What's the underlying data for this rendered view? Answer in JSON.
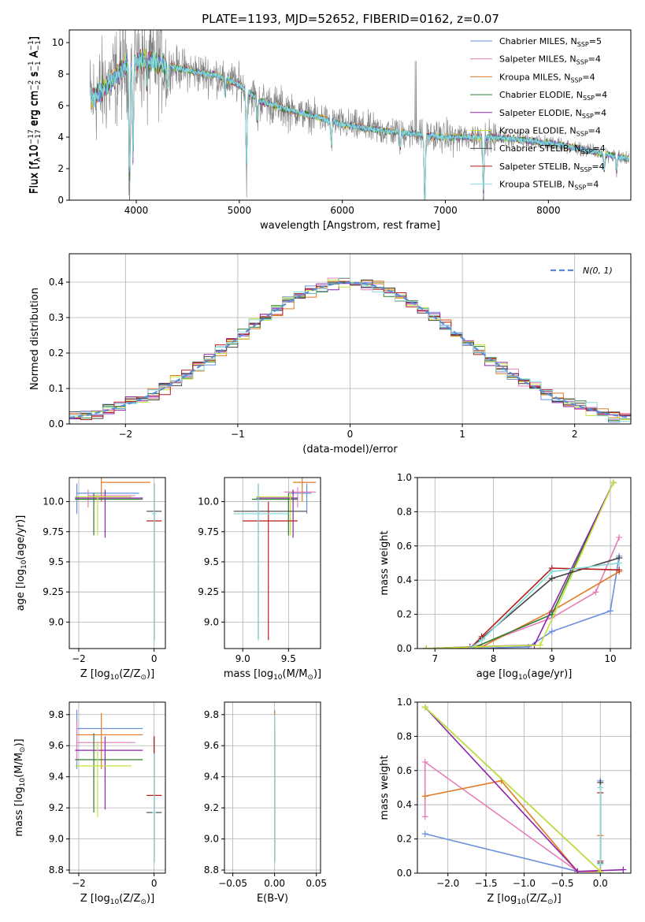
{
  "figure": {
    "title": "PLATE=1193, MJD=52652, FIBERID=0162, z=0.07"
  },
  "colors": {
    "Chabrier MILES": "#6a8fde",
    "Salpeter MILES": "#e67fb8",
    "Kroupa MILES": "#e07a25",
    "Chabrier ELODIE": "#2e7d32",
    "Salpeter ELODIE": "#8e24aa",
    "Kroupa ELODIE": "#c6e33a",
    "Chabrier STELIB": "#444444",
    "Salpeter STELIB": "#b71c1c",
    "Kroupa STELIB": "#86dcdc",
    "data": "#808080",
    "gaussian": "#5b8bd8"
  },
  "chart_data": [
    {
      "type": "line",
      "title": "PLATE=1193, MJD=52652, FIBERID=0162, z=0.07",
      "xlabel": "wavelength [Angstrom, rest frame]",
      "ylabel_parts": [
        "Flux [f",
        "λ",
        "10",
        "−17",
        " erg cm",
        "−2",
        " s",
        "−1",
        " A",
        "−1",
        "]"
      ],
      "xlim": [
        3350,
        8800
      ],
      "ylim": [
        0,
        10.8
      ],
      "xticks": [
        4000,
        5000,
        6000,
        7000,
        8000
      ],
      "yticks": [
        0,
        2,
        4,
        6,
        8,
        10
      ],
      "grid": false,
      "legend_position": "top-right",
      "legend": [
        {
          "name": "Chabrier MILES",
          "label": "Chabrier MILES, N",
          "sub": "SSP",
          "suffix": "=5"
        },
        {
          "name": "Salpeter MILES",
          "label": "Salpeter MILES, N",
          "sub": "SSP",
          "suffix": "=4"
        },
        {
          "name": "Kroupa MILES",
          "label": "Kroupa MILES, N",
          "sub": "SSP",
          "suffix": "=4"
        },
        {
          "name": "Chabrier ELODIE",
          "label": "Chabrier ELODIE, N",
          "sub": "SSP",
          "suffix": "=4"
        },
        {
          "name": "Salpeter ELODIE",
          "label": "Salpeter ELODIE, N",
          "sub": "SSP",
          "suffix": "=4"
        },
        {
          "name": "Kroupa ELODIE",
          "label": "Kroupa ELODIE, N",
          "sub": "SSP",
          "suffix": "=4"
        },
        {
          "name": "Chabrier STELIB",
          "label": "Chabrier STELIB, N",
          "sub": "SSP",
          "suffix": "=4"
        },
        {
          "name": "Salpeter STELIB",
          "label": "Salpeter STELIB, N",
          "sub": "SSP",
          "suffix": "=4"
        },
        {
          "name": "Kroupa STELIB",
          "label": "Kroupa STELIB, N",
          "sub": "SSP",
          "suffix": "=4"
        }
      ],
      "data_series": {
        "name": "data",
        "start": 3550,
        "end": 8780
      },
      "continuum": {
        "x": [
          3550,
          3700,
          3800,
          3900,
          4000,
          4100,
          4200,
          4400,
          4600,
          4800,
          5000,
          5200,
          5400,
          5600,
          5800,
          6000,
          6200,
          6400,
          6600,
          6800,
          7000,
          7200,
          7400,
          7600,
          7800,
          8000,
          8200,
          8400,
          8600,
          8780
        ],
        "y": [
          6.3,
          7.2,
          7.8,
          8.6,
          8.8,
          8.9,
          8.7,
          8.4,
          8.1,
          7.9,
          7.3,
          6.3,
          5.9,
          5.5,
          5.2,
          4.8,
          4.6,
          4.4,
          4.3,
          4.1,
          4.0,
          4.0,
          4.0,
          3.9,
          3.8,
          3.6,
          3.4,
          3.1,
          2.9,
          2.6
        ]
      },
      "absorption_lines": [
        {
          "x": 3934,
          "depth": 7.9
        },
        {
          "x": 3968,
          "depth": 6.5
        },
        {
          "x": 4102,
          "depth": 1.8
        },
        {
          "x": 4304,
          "depth": 1.5
        },
        {
          "x": 4861,
          "depth": 1.2
        },
        {
          "x": 5070,
          "depth": 5.5
        },
        {
          "x": 5175,
          "depth": 1.5
        },
        {
          "x": 5893,
          "depth": 1.6
        },
        {
          "x": 6563,
          "depth": 1.0
        },
        {
          "x": 6800,
          "depth": 5.0
        },
        {
          "x": 7370,
          "depth": 4.0
        },
        {
          "x": 8542,
          "depth": 1.2
        },
        {
          "x": 8662,
          "depth": 1.0
        }
      ]
    },
    {
      "type": "bar",
      "xlabel": "(data-model)/error",
      "ylabel": "Normed distribution",
      "xlim": [
        -2.5,
        2.5
      ],
      "ylim": [
        0,
        0.48
      ],
      "xticks": [
        -2,
        -1,
        0,
        1,
        2
      ],
      "yticks": [
        0.0,
        0.1,
        0.2,
        0.3,
        0.4
      ],
      "grid": true,
      "legend_position": "top-right",
      "gaussian_label": "N(0, 1)",
      "bin_width": 0.1
    },
    {
      "type": "scatter",
      "xlabel_parts": [
        "Z [log",
        "10",
        "(Z/Z",
        "⊙",
        ")]"
      ],
      "ylabel_parts": [
        "age  [log",
        "10",
        "(age/yr)]"
      ],
      "xlim": [
        -2.25,
        0.3
      ],
      "ylim": [
        8.78,
        10.2
      ],
      "xticks": [
        -2,
        0
      ],
      "yticks": [
        9.0,
        9.25,
        9.5,
        9.75,
        10.0
      ],
      "grid": true,
      "points": [
        {
          "model": "Chabrier MILES",
          "x": -2.05,
          "xlo": -2.05,
          "xhi": -0.4,
          "y": 10.07,
          "ylo": 9.9,
          "yhi": 10.15
        },
        {
          "model": "Salpeter MILES",
          "x": -1.75,
          "xlo": -1.75,
          "xhi": -0.5,
          "y": 10.05,
          "ylo": 9.95,
          "yhi": 10.1
        },
        {
          "model": "Kroupa MILES",
          "x": -1.4,
          "xlo": -1.4,
          "xhi": -0.1,
          "y": 10.16,
          "ylo": 10.0,
          "yhi": 10.2
        },
        {
          "model": "Chabrier ELODIE",
          "x": -1.6,
          "xlo": -2.1,
          "xhi": -0.3,
          "y": 10.02,
          "ylo": 9.72,
          "yhi": 10.07
        },
        {
          "model": "Salpeter ELODIE",
          "x": -1.3,
          "xlo": -2.1,
          "xhi": -0.3,
          "y": 10.03,
          "ylo": 9.7,
          "yhi": 10.1
        },
        {
          "model": "Kroupa ELODIE",
          "x": -1.5,
          "xlo": -2.1,
          "xhi": -0.6,
          "y": 10.04,
          "ylo": 9.72,
          "yhi": 10.08
        },
        {
          "model": "Chabrier STELIB",
          "x": 0.0,
          "xlo": -0.2,
          "xhi": 0.2,
          "y": 9.92,
          "ylo": 8.85,
          "yhi": 10.15
        },
        {
          "model": "Salpeter STELIB",
          "x": 0.0,
          "xlo": -0.2,
          "xhi": 0.2,
          "y": 9.84,
          "ylo": 8.85,
          "yhi": 10.15
        },
        {
          "model": "Kroupa STELIB",
          "x": 0.0,
          "xlo": -0.05,
          "xhi": 0.05,
          "y": 9.9,
          "ylo": 8.82,
          "yhi": 10.15
        }
      ]
    },
    {
      "type": "scatter",
      "xlabel_parts": [
        "mass [log",
        "10",
        "(M/M",
        "⊙",
        ")]"
      ],
      "ylabel": "",
      "xlim": [
        8.8,
        9.85
      ],
      "ylim": [
        8.78,
        10.2
      ],
      "xticks": [
        9.0,
        9.5
      ],
      "yticks": [
        9.0,
        9.25,
        9.5,
        9.75,
        10.0
      ],
      "grid": true,
      "points": [
        {
          "model": "Chabrier MILES",
          "x": 9.7,
          "xlo": 9.5,
          "xhi": 9.75,
          "y": 10.07,
          "ylo": 9.9,
          "yhi": 10.15
        },
        {
          "model": "Salpeter MILES",
          "x": 9.6,
          "xlo": 9.45,
          "xhi": 9.8,
          "y": 10.08,
          "ylo": 9.95,
          "yhi": 10.12
        },
        {
          "model": "Kroupa MILES",
          "x": 9.65,
          "xlo": 9.55,
          "xhi": 9.8,
          "y": 10.16,
          "ylo": 10.0,
          "yhi": 10.2
        },
        {
          "model": "Chabrier ELODIE",
          "x": 9.5,
          "xlo": 9.1,
          "xhi": 9.6,
          "y": 10.02,
          "ylo": 9.72,
          "yhi": 10.07
        },
        {
          "model": "Salpeter ELODIE",
          "x": 9.55,
          "xlo": 9.15,
          "xhi": 9.6,
          "y": 10.03,
          "ylo": 9.7,
          "yhi": 10.1
        },
        {
          "model": "Kroupa ELODIE",
          "x": 9.52,
          "xlo": 9.15,
          "xhi": 9.55,
          "y": 10.04,
          "ylo": 9.72,
          "yhi": 10.08
        },
        {
          "model": "Chabrier STELIB",
          "x": 9.17,
          "xlo": 8.9,
          "xhi": 9.7,
          "y": 9.92,
          "ylo": 8.85,
          "yhi": 10.15
        },
        {
          "model": "Salpeter STELIB",
          "x": 9.28,
          "xlo": 9.0,
          "xhi": 9.6,
          "y": 9.84,
          "ylo": 8.85,
          "yhi": 10.0
        },
        {
          "model": "Kroupa STELIB",
          "x": 9.17,
          "xlo": 8.9,
          "xhi": 9.5,
          "y": 9.9,
          "ylo": 8.85,
          "yhi": 10.15
        }
      ]
    },
    {
      "type": "line",
      "xlabel_parts": [
        "age  [log",
        "10",
        "(age/yr)]"
      ],
      "ylabel": "mass weight",
      "xlim": [
        6.7,
        10.35
      ],
      "ylim": [
        0,
        1.0
      ],
      "xticks": [
        7,
        8,
        9,
        10
      ],
      "yticks": [
        0.0,
        0.2,
        0.4,
        0.6,
        0.8,
        1.0
      ],
      "grid": true,
      "series": [
        {
          "name": "Chabrier MILES",
          "x": [
            7.6,
            8.6,
            9.0,
            10.0,
            10.15
          ],
          "y": [
            0.0,
            0.01,
            0.1,
            0.22,
            0.54
          ]
        },
        {
          "name": "Salpeter MILES",
          "x": [
            7.6,
            9.0,
            9.75,
            10.15
          ],
          "y": [
            0.0,
            0.18,
            0.33,
            0.65
          ]
        },
        {
          "name": "Kroupa MILES",
          "x": [
            6.85,
            7.8,
            9.0,
            10.15
          ],
          "y": [
            0.0,
            0.01,
            0.22,
            0.45
          ]
        },
        {
          "name": "Chabrier ELODIE",
          "x": [
            6.85,
            7.7,
            9.0,
            10.05
          ],
          "y": [
            0.0,
            0.01,
            0.2,
            0.97
          ]
        },
        {
          "name": "Salpeter ELODIE",
          "x": [
            6.85,
            7.6,
            8.7,
            10.05
          ],
          "y": [
            0.0,
            0.01,
            0.02,
            0.97
          ]
        },
        {
          "name": "Kroupa ELODIE",
          "x": [
            6.85,
            7.7,
            8.8,
            10.05
          ],
          "y": [
            0.0,
            0.01,
            0.02,
            0.97
          ]
        },
        {
          "name": "Chabrier STELIB",
          "x": [
            7.6,
            7.8,
            9.0,
            10.15
          ],
          "y": [
            0.0,
            0.06,
            0.41,
            0.53
          ]
        },
        {
          "name": "Salpeter STELIB",
          "x": [
            7.6,
            7.8,
            9.0,
            10.15
          ],
          "y": [
            0.0,
            0.07,
            0.47,
            0.46
          ]
        },
        {
          "name": "Kroupa STELIB",
          "x": [
            7.6,
            7.8,
            9.0,
            10.15
          ],
          "y": [
            0.0,
            0.05,
            0.45,
            0.5
          ]
        }
      ]
    },
    {
      "type": "scatter",
      "xlabel_parts": [
        "Z [log",
        "10",
        "(Z/Z",
        "⊙",
        ")]"
      ],
      "ylabel_parts": [
        "mass [log",
        "10",
        "(M/M",
        "⊙",
        ")]"
      ],
      "xlim": [
        -2.25,
        0.3
      ],
      "ylim": [
        8.78,
        9.88
      ],
      "xticks": [
        -2,
        0
      ],
      "yticks": [
        8.8,
        9.0,
        9.2,
        9.4,
        9.6,
        9.8
      ],
      "grid": true,
      "points": [
        {
          "model": "Chabrier MILES",
          "x": -2.05,
          "xlo": -2.05,
          "xhi": -0.3,
          "y": 9.71,
          "ylo": 9.45,
          "yhi": 9.83
        },
        {
          "model": "Salpeter MILES",
          "x": -2.05,
          "xlo": -2.05,
          "xhi": -0.5,
          "y": 9.62,
          "ylo": 9.5,
          "yhi": 9.76
        },
        {
          "model": "Kroupa MILES",
          "x": -1.4,
          "xlo": -2.05,
          "xhi": -0.3,
          "y": 9.67,
          "ylo": 9.45,
          "yhi": 9.81
        },
        {
          "model": "Chabrier ELODIE",
          "x": -1.6,
          "xlo": -2.1,
          "xhi": -0.3,
          "y": 9.51,
          "ylo": 9.17,
          "yhi": 9.68
        },
        {
          "model": "Salpeter ELODIE",
          "x": -1.3,
          "xlo": -2.1,
          "xhi": -0.3,
          "y": 9.57,
          "ylo": 9.19,
          "yhi": 9.66
        },
        {
          "model": "Kroupa ELODIE",
          "x": -1.5,
          "xlo": -2.1,
          "xhi": -0.6,
          "y": 9.47,
          "ylo": 9.14,
          "yhi": 9.63
        },
        {
          "model": "Chabrier STELIB",
          "x": 0.0,
          "xlo": -0.2,
          "xhi": 0.2,
          "y": 9.17,
          "ylo": 8.85,
          "yhi": 9.66
        },
        {
          "model": "Salpeter STELIB",
          "x": 0.0,
          "xlo": -0.2,
          "xhi": 0.2,
          "y": 9.28,
          "ylo": 8.85,
          "yhi": 9.66
        },
        {
          "model": "Kroupa STELIB",
          "x": 0.0,
          "xlo": -0.05,
          "xhi": 0.05,
          "y": 9.17,
          "ylo": 8.84,
          "yhi": 9.55
        }
      ]
    },
    {
      "type": "scatter",
      "xlabel": "E(B-V)",
      "ylabel": "",
      "xlim": [
        -0.06,
        0.055
      ],
      "ylim": [
        8.78,
        9.88
      ],
      "xticks": [
        -0.05,
        0.0,
        0.05
      ],
      "yticks": [
        8.8,
        9.0,
        9.2,
        9.4,
        9.6,
        9.8
      ],
      "grid": true,
      "points": [
        {
          "model": "Chabrier MILES",
          "x": 0.0,
          "xlo": 0.0,
          "xhi": 0.0,
          "y": 9.65,
          "ylo": 8.85,
          "yhi": 9.83
        },
        {
          "model": "Salpeter MILES",
          "x": 0.0,
          "xlo": 0.0,
          "xhi": 0.0,
          "y": 9.63,
          "ylo": 8.86,
          "yhi": 9.78
        },
        {
          "model": "Kroupa MILES",
          "x": 0.0,
          "xlo": 0.0,
          "xhi": 0.0,
          "y": 9.66,
          "ylo": 8.86,
          "yhi": 9.82
        },
        {
          "model": "Salpeter STELIB",
          "x": 0.0,
          "xlo": 0.0,
          "xhi": 0.0,
          "y": 9.65,
          "ylo": 8.85,
          "yhi": 9.7
        },
        {
          "model": "Kroupa STELIB",
          "x": 0.0,
          "xlo": 0.0,
          "xhi": 0.0,
          "y": 9.63,
          "ylo": 8.84,
          "yhi": 9.8
        }
      ]
    },
    {
      "type": "line",
      "xlabel_parts": [
        "Z [log",
        "10",
        "(Z/Z",
        "⊙",
        ")]"
      ],
      "ylabel": "mass weight",
      "xlim": [
        -2.4,
        0.4
      ],
      "ylim": [
        0,
        1.0
      ],
      "xticks": [
        -2.0,
        -1.5,
        -1.0,
        -0.5,
        0.0
      ],
      "yticks": [
        0.0,
        0.2,
        0.4,
        0.6,
        0.8,
        1.0
      ],
      "grid": true,
      "series": [
        {
          "name": "Chabrier MILES",
          "x": [
            -2.3,
            -0.3,
            0.0,
            0.0
          ],
          "y": [
            0.23,
            0.01,
            0.01,
            0.54
          ]
        },
        {
          "name": "Salpeter MILES",
          "x": [
            -2.3,
            -2.3,
            -0.3,
            0.0
          ],
          "y": [
            0.33,
            0.65,
            0.01,
            0.01
          ]
        },
        {
          "name": "Kroupa MILES",
          "x": [
            -2.3,
            -1.3,
            -0.3,
            0.0,
            0.0
          ],
          "y": [
            0.45,
            0.54,
            0.01,
            0.01,
            0.22
          ]
        },
        {
          "name": "Chabrier ELODIE",
          "x": [
            -2.3,
            0.0
          ],
          "y": [
            0.97,
            0.01
          ]
        },
        {
          "name": "Salpeter ELODIE",
          "x": [
            -2.3,
            -0.3,
            0.3
          ],
          "y": [
            0.97,
            0.01,
            0.02
          ]
        },
        {
          "name": "Kroupa ELODIE",
          "x": [
            -2.3,
            0.0
          ],
          "y": [
            0.97,
            0.01
          ]
        },
        {
          "name": "Chabrier STELIB",
          "x": [
            0.0,
            0.0
          ],
          "y": [
            0.06,
            0.53
          ]
        },
        {
          "name": "Salpeter STELIB",
          "x": [
            0.0,
            0.0
          ],
          "y": [
            0.07,
            0.47
          ]
        },
        {
          "name": "Kroupa STELIB",
          "x": [
            0.0,
            0.0
          ],
          "y": [
            0.05,
            0.5
          ]
        }
      ]
    }
  ]
}
